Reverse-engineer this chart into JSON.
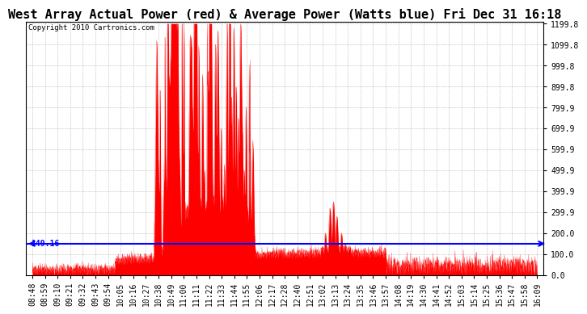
{
  "title": "West Array Actual Power (red) & Average Power (Watts blue) Fri Dec 31 16:18",
  "copyright_text": "Copyright 2010 Cartronics.com",
  "avg_power": 149.16,
  "y_max": 1199.8,
  "y_min": 0.0,
  "yticks": [
    0.0,
    100.0,
    200.0,
    299.9,
    399.9,
    499.9,
    599.9,
    699.9,
    799.9,
    899.8,
    999.8,
    1099.8,
    1199.8
  ],
  "xtick_labels": [
    "08:48",
    "08:59",
    "09:10",
    "09:21",
    "09:32",
    "09:43",
    "09:54",
    "10:05",
    "10:16",
    "10:27",
    "10:38",
    "10:49",
    "11:00",
    "11:11",
    "11:22",
    "11:33",
    "11:44",
    "11:55",
    "12:06",
    "12:17",
    "12:28",
    "12:40",
    "12:51",
    "13:02",
    "13:13",
    "13:24",
    "13:35",
    "13:46",
    "13:57",
    "14:08",
    "14:19",
    "14:30",
    "14:41",
    "14:52",
    "15:03",
    "15:14",
    "15:25",
    "15:36",
    "15:47",
    "15:58",
    "16:09"
  ],
  "bg_color": "#ffffff",
  "red_color": "#ff0000",
  "blue_color": "#0000ff",
  "title_fontsize": 11,
  "copyright_fontsize": 6.5,
  "tick_fontsize": 7
}
